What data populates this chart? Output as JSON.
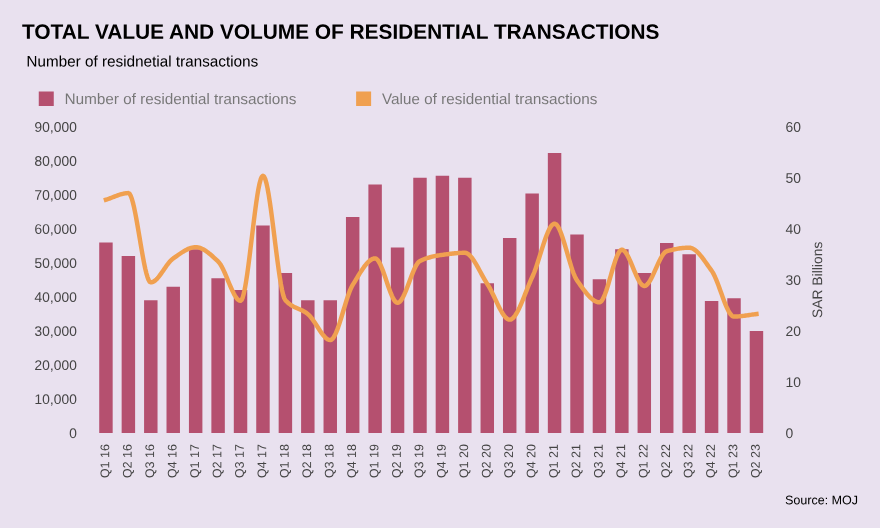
{
  "chart_data": {
    "type": "bar",
    "title": "TOTAL VALUE AND VOLUME OF RESIDENTIAL TRANSACTIONS",
    "subtitle": "Number of residnetial transactions",
    "y2label": "SAR Billions",
    "categories": [
      "Q1 16",
      "Q2 16",
      "Q3 16",
      "Q4 16",
      "Q1 17",
      "Q2 17",
      "Q3 17",
      "Q4 17",
      "Q1 18",
      "Q2 18",
      "Q3 18",
      "Q4 18",
      "Q1 19",
      "Q2 19",
      "Q3 19",
      "Q4 19",
      "Q1 20",
      "Q2 20",
      "Q3 20",
      "Q4 20",
      "Q1 21",
      "Q2 21",
      "Q3 21",
      "Q4 21",
      "Q1 22",
      "Q2 22",
      "Q3 22",
      "Q4 22",
      "Q1 23",
      "Q2 23"
    ],
    "series": [
      {
        "name": "Number of residential transactions",
        "color": "#b5506f",
        "values": [
          56000,
          52000,
          39000,
          43000,
          54000,
          45500,
          42000,
          61000,
          47000,
          39000,
          39000,
          63500,
          73000,
          54500,
          75000,
          75600,
          75000,
          44000,
          57300,
          70400,
          82300,
          58300,
          45200,
          54000,
          47000,
          55800,
          52500,
          38800,
          39600,
          30000
        ]
      },
      {
        "name": "Value of residential transactions",
        "type": "line",
        "axis": "y2",
        "color": "#f0a050",
        "values": [
          45.7,
          47,
          29.5,
          34.2,
          36.4,
          33.6,
          25.9,
          50.4,
          26,
          23.3,
          18.2,
          29,
          34.2,
          25.5,
          33.7,
          34.9,
          35.3,
          29.2,
          22.2,
          30.5,
          41,
          29.9,
          25.6,
          35.9,
          28.8,
          35.6,
          36.3,
          31.8,
          22.8,
          23.3
        ]
      }
    ],
    "ylim": [
      0,
      90000
    ],
    "yticks": [
      {
        "value": 0,
        "label": "0"
      },
      {
        "value": 10000,
        "label": "10,000"
      },
      {
        "value": 20000,
        "label": "20,000"
      },
      {
        "value": 30000,
        "label": "30,000"
      },
      {
        "value": 40000,
        "label": "40,000"
      },
      {
        "value": 50000,
        "label": "50,000"
      },
      {
        "value": 60000,
        "label": "60,000"
      },
      {
        "value": 70000,
        "label": "70,000"
      },
      {
        "value": 80000,
        "label": "80,000"
      },
      {
        "value": 90000,
        "label": "90,000"
      }
    ],
    "y2lim": [
      0,
      60
    ],
    "y2ticks": [
      0,
      10,
      20,
      30,
      40,
      50,
      60
    ],
    "legend": "top left",
    "grid": false,
    "annotations": [
      "Source: MOJ"
    ]
  }
}
